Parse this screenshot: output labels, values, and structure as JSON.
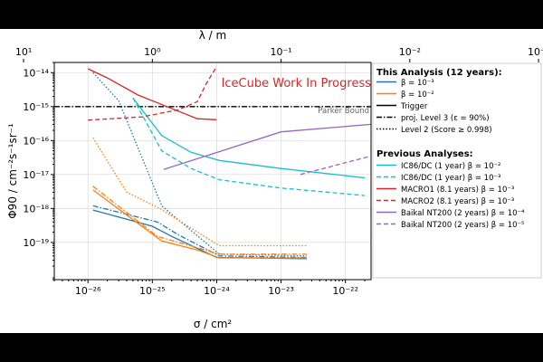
{
  "annotations": {
    "work_in_progress": "IceCube Work In Progress",
    "parker_bound": "Parker Bound"
  },
  "chart_data": {
    "type": "line",
    "title": "",
    "xlabel": "σ / cm²",
    "ylabel": "Φ90 / cm⁻²s⁻¹sr⁻¹",
    "top_xlabel": "λ / m",
    "xscale": "log",
    "yscale": "log",
    "xlim": [
      3e-27,
      2.5e-22
    ],
    "ylim": [
      8e-21,
      2e-14
    ],
    "x_ticks": [
      "10⁻²⁶",
      "10⁻²⁵",
      "10⁻²⁴",
      "10⁻²³",
      "10⁻²²"
    ],
    "y_ticks": [
      "10⁻¹⁹",
      "10⁻¹⁸",
      "10⁻¹⁷",
      "10⁻¹⁶",
      "10⁻¹⁵",
      "10⁻¹⁴"
    ],
    "top_ticks": [
      "10¹",
      "10⁰",
      "10⁻¹",
      "10⁻²",
      "10⁻³"
    ],
    "grid": true,
    "legend_position": "right, outside",
    "legend": {
      "this_heading": "This Analysis (12 years):",
      "previous_heading": "Previous Analyses:",
      "entries": [
        {
          "label": "β = 10⁻³",
          "color": "#1f77b4",
          "dash": "solid",
          "group": "this"
        },
        {
          "label": "β = 10⁻²",
          "color": "#ff7f0e",
          "dash": "solid",
          "group": "this"
        },
        {
          "label": "Trigger",
          "color": "#000000",
          "dash": "solid",
          "group": "this"
        },
        {
          "label": "proj. Level 3 (ε = 90%)",
          "color": "#000000",
          "dash": "dashdot",
          "group": "this"
        },
        {
          "label": "Level 2 (Score ≥ 0.998)",
          "color": "#000000",
          "dash": "dotted",
          "group": "this"
        },
        {
          "label": "IC86/DC (1 year) β = 10⁻²",
          "color": "#17becf",
          "dash": "solid",
          "group": "previous"
        },
        {
          "label": "IC86/DC (1 year) β = 10⁻³",
          "color": "#17becf",
          "dash": "dashed",
          "group": "previous"
        },
        {
          "label": "MACRO1 (8.1 years) β = 10⁻³",
          "color": "#d62728",
          "dash": "solid",
          "group": "previous"
        },
        {
          "label": "MACRO2 (8.1 years) β = 10⁻³",
          "color": "#d62728",
          "dash": "dashed",
          "group": "previous"
        },
        {
          "label": "Baikal NT200 (2 years) β = 10⁻⁴",
          "color": "#9467bd",
          "dash": "solid",
          "group": "previous"
        },
        {
          "label": "Baikal NT200 (2 years) β = 10⁻⁵",
          "color": "#9467bd",
          "dash": "dashed",
          "group": "previous"
        }
      ]
    },
    "series": [
      {
        "name": "β = 10⁻³",
        "color": "#1f77b4",
        "dash": "solid",
        "x": [
          1.2e-26,
          1e-25,
          2e-25,
          1e-24,
          2.5e-23
        ],
        "y": [
          9e-19,
          3e-19,
          1.5e-19,
          3.6e-20,
          3.3e-20
        ]
      },
      {
        "name": "β = 10⁻³",
        "color": "#1f77b4",
        "dash": "dashdot",
        "x": [
          1.2e-26,
          1.2e-25,
          2.5e-25,
          1.1e-24,
          2.5e-23
        ],
        "y": [
          1.2e-18,
          4e-19,
          1.7e-19,
          4e-20,
          3.6e-20
        ]
      },
      {
        "name": "β = 10⁻³",
        "color": "#1f77b4",
        "dash": "dotted",
        "x": [
          1.2e-26,
          3e-26,
          1.4e-25,
          1.1e-24,
          2.5e-23
        ],
        "y": [
          1e-14,
          1.5e-15,
          1.2e-18,
          4.5e-20,
          4e-20
        ]
      },
      {
        "name": "β = 10⁻²",
        "color": "#ff7f0e",
        "dash": "solid",
        "x": [
          1.2e-26,
          1.4e-25,
          5e-25,
          1.1e-24,
          2.5e-23
        ],
        "y": [
          3.5e-18,
          1.1e-19,
          6e-20,
          3.5e-20,
          3.5e-20
        ]
      },
      {
        "name": "β = 10⁻²",
        "color": "#ff7f0e",
        "dash": "dashdot",
        "x": [
          1.2e-26,
          1.2e-25,
          5e-25,
          1.1e-24,
          2.5e-23
        ],
        "y": [
          4.5e-18,
          1.5e-19,
          7e-20,
          4.5e-20,
          4.5e-20
        ]
      },
      {
        "name": "β = 10⁻²",
        "color": "#ff7f0e",
        "dash": "dotted",
        "x": [
          1.2e-26,
          4e-26,
          1.3e-25,
          1.1e-24,
          2.5e-23
        ],
        "y": [
          1.2e-16,
          3e-18,
          1e-18,
          8e-20,
          8e-20
        ]
      },
      {
        "name": "Parker Bound",
        "color": "#000000",
        "dash": "dashdot",
        "x": [
          3e-27,
          2.5e-22
        ],
        "y": [
          1e-15,
          1e-15
        ]
      },
      {
        "name": "IC86/DC (1 year) β = 10⁻²",
        "color": "#17becf",
        "dash": "solid",
        "x": [
          5e-26,
          1.4e-25,
          4e-25,
          1.1e-24,
          1e-23,
          2e-22
        ],
        "y": [
          1.8e-15,
          1.4e-16,
          4.5e-17,
          2.6e-17,
          1.5e-17,
          8e-18
        ]
      },
      {
        "name": "IC86/DC (1 year) β = 10⁻³",
        "color": "#17becf",
        "dash": "dashed",
        "x": [
          5e-26,
          1.4e-25,
          4e-25,
          1.1e-24,
          1e-23,
          2e-22
        ],
        "y": [
          1.8e-15,
          5e-17,
          1.5e-17,
          7e-18,
          4e-18,
          2.4e-18
        ]
      },
      {
        "name": "MACRO1 (8.1 years) β = 10⁻³",
        "color": "#d62728",
        "dash": "solid",
        "x": [
          1e-26,
          2e-26,
          6e-26,
          1.5e-25,
          5e-25,
          1e-24
        ],
        "y": [
          1.3e-14,
          7e-15,
          2.2e-15,
          1.1e-15,
          4.4e-16,
          4.1e-16
        ]
      },
      {
        "name": "MACRO2 (8.1 years) β = 10⁻³",
        "color": "#d62728",
        "dash": "dashed",
        "x": [
          1e-26,
          7e-26,
          2.5e-25,
          5e-25,
          7e-25,
          1e-24
        ],
        "y": [
          4e-16,
          5e-16,
          8e-16,
          1.4e-15,
          5e-15,
          1.5e-14
        ]
      },
      {
        "name": "Baikal NT200 (2 years) β = 10⁻⁴",
        "color": "#9467bd",
        "dash": "solid",
        "x": [
          1.5e-25,
          1e-23,
          2.5e-22
        ],
        "y": [
          1.4e-17,
          1.8e-16,
          3e-16
        ]
      },
      {
        "name": "Baikal NT200 (2 years) β = 10⁻⁵",
        "color": "#9467bd",
        "dash": "dashed",
        "x": [
          2e-23,
          2.5e-22
        ],
        "y": [
          1e-17,
          3.5e-17
        ]
      }
    ]
  }
}
